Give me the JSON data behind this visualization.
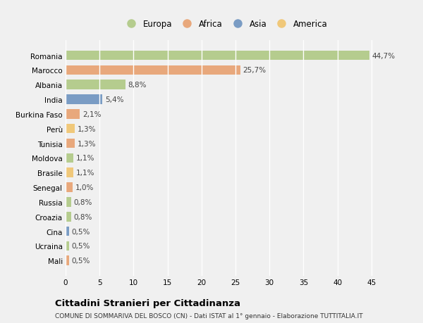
{
  "categories": [
    "Romania",
    "Marocco",
    "Albania",
    "India",
    "Burkina Faso",
    "Perù",
    "Tunisia",
    "Moldova",
    "Brasile",
    "Senegal",
    "Russia",
    "Croazia",
    "Cina",
    "Ucraina",
    "Mali"
  ],
  "values": [
    44.7,
    25.7,
    8.8,
    5.4,
    2.1,
    1.3,
    1.3,
    1.1,
    1.1,
    1.0,
    0.8,
    0.8,
    0.5,
    0.5,
    0.5
  ],
  "labels": [
    "44,7%",
    "25,7%",
    "8,8%",
    "5,4%",
    "2,1%",
    "1,3%",
    "1,3%",
    "1,1%",
    "1,1%",
    "1,0%",
    "0,8%",
    "0,8%",
    "0,5%",
    "0,5%",
    "0,5%"
  ],
  "colors": [
    "#b5cc8e",
    "#e8a87c",
    "#b5cc8e",
    "#7a9cc4",
    "#e8a87c",
    "#f0c87a",
    "#e8a87c",
    "#b5cc8e",
    "#f0c87a",
    "#e8a87c",
    "#b5cc8e",
    "#b5cc8e",
    "#7a9cc4",
    "#b5cc8e",
    "#e8a87c"
  ],
  "legend_labels": [
    "Europa",
    "Africa",
    "Asia",
    "America"
  ],
  "legend_colors": [
    "#b5cc8e",
    "#e8a87c",
    "#7a9cc4",
    "#f0c87a"
  ],
  "xlim": [
    0,
    47
  ],
  "xticks": [
    0,
    5,
    10,
    15,
    20,
    25,
    30,
    35,
    40,
    45
  ],
  "title": "Cittadini Stranieri per Cittadinanza",
  "subtitle": "COMUNE DI SOMMARIVA DEL BOSCO (CN) - Dati ISTAT al 1° gennaio - Elaborazione TUTTITALIA.IT",
  "bg_color": "#f0f0f0",
  "grid_color": "#ffffff",
  "bar_height": 0.65
}
